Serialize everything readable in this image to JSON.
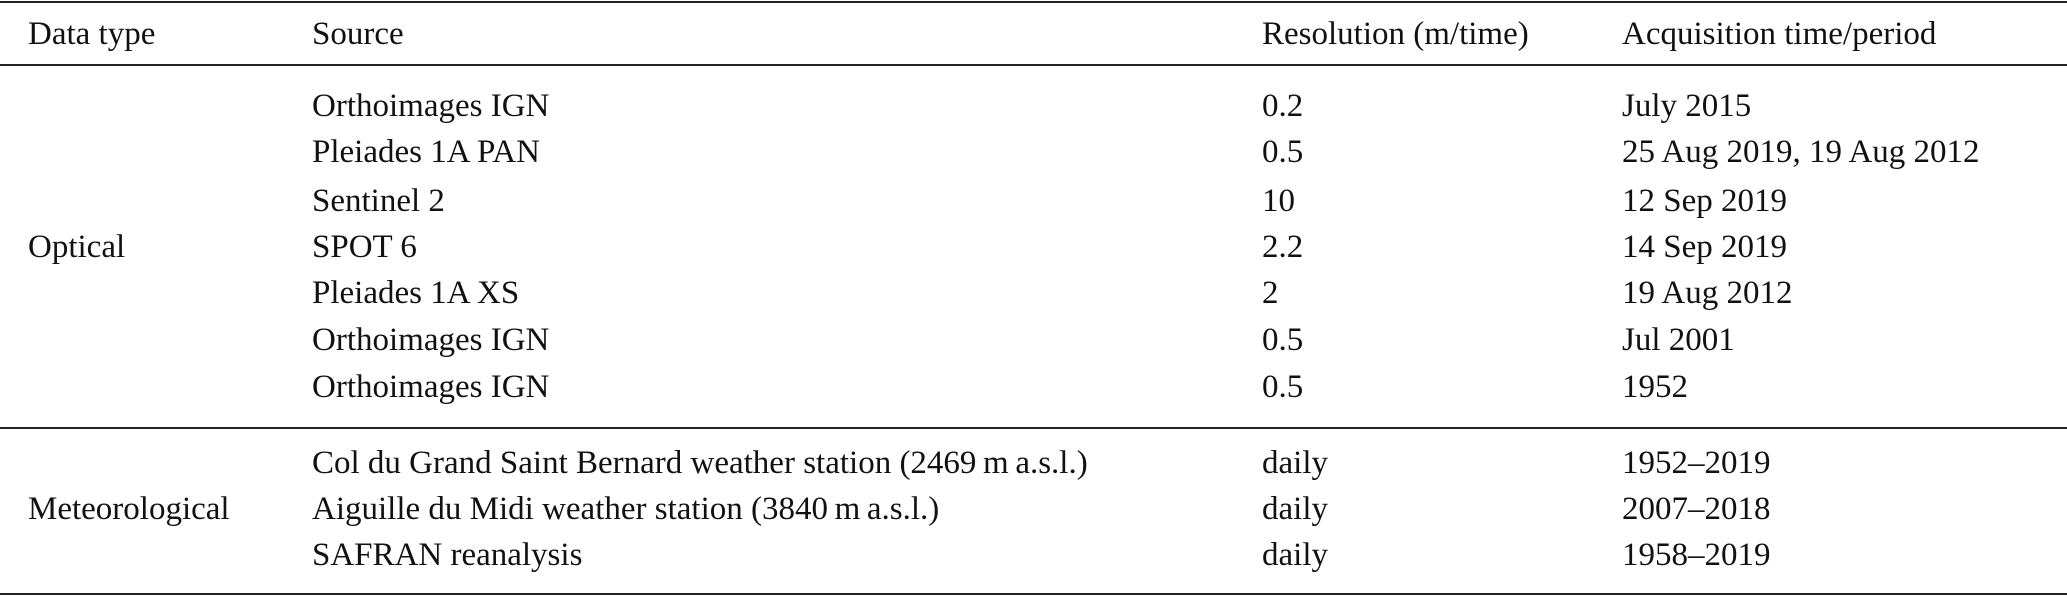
{
  "table": {
    "headers": [
      "Data type",
      "Source",
      "Resolution (m/time)",
      "Acquisition time/period"
    ],
    "groups": [
      {
        "label": "Optical",
        "rows": [
          {
            "source": "Orthoimages IGN",
            "resolution": "0.2",
            "acquisition": "July 2015"
          },
          {
            "source": "Pleiades 1A PAN",
            "resolution": "0.5",
            "acquisition": "25 Aug 2019, 19 Aug 2012"
          },
          {
            "source": "Sentinel 2",
            "resolution": "10",
            "acquisition": "12 Sep 2019"
          },
          {
            "source": "SPOT 6",
            "resolution": "2.2",
            "acquisition": "14 Sep 2019"
          },
          {
            "source": "Pleiades 1A XS",
            "resolution": "2",
            "acquisition": "19 Aug 2012"
          },
          {
            "source": "Orthoimages IGN",
            "resolution": "0.5",
            "acquisition": "Jul 2001"
          },
          {
            "source": "Orthoimages IGN",
            "resolution": "0.5",
            "acquisition": "1952"
          }
        ]
      },
      {
        "label": "Meteorological",
        "rows": [
          {
            "source": "Col du Grand Saint Bernard weather station (2469 m a.s.l.)",
            "resolution": "daily",
            "acquisition": "1952–2019"
          },
          {
            "source": "Aiguille du Midi weather station (3840 m a.s.l.)",
            "resolution": "daily",
            "acquisition": "2007–2018"
          },
          {
            "source": "SAFRAN reanalysis",
            "resolution": "daily",
            "acquisition": "1958–2019"
          }
        ]
      }
    ]
  }
}
